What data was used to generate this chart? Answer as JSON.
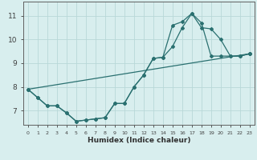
{
  "xlabel": "Humidex (Indice chaleur)",
  "xlim": [
    -0.5,
    23.5
  ],
  "ylim": [
    6.4,
    11.6
  ],
  "yticks": [
    7,
    8,
    9,
    10,
    11
  ],
  "xticks": [
    0,
    1,
    2,
    3,
    4,
    5,
    6,
    7,
    8,
    9,
    10,
    11,
    12,
    13,
    14,
    15,
    16,
    17,
    18,
    19,
    20,
    21,
    22,
    23
  ],
  "bg_color": "#d8eeee",
  "grid_color": "#b8d8d8",
  "line_color": "#2a7070",
  "lines": [
    {
      "x": [
        0,
        1,
        2,
        3,
        4,
        5,
        6,
        7,
        8,
        9,
        10,
        11,
        12,
        13,
        14,
        15,
        16,
        17,
        18,
        19,
        20,
        21,
        22,
        23
      ],
      "y": [
        7.9,
        7.55,
        7.2,
        7.2,
        6.9,
        6.55,
        6.6,
        6.65,
        6.7,
        7.3,
        7.3,
        8.0,
        8.5,
        9.2,
        9.25,
        9.7,
        10.5,
        11.1,
        10.5,
        10.45,
        10.0,
        9.3,
        9.3,
        9.4
      ]
    },
    {
      "x": [
        0,
        1,
        2,
        3,
        4,
        5,
        6,
        7,
        8,
        9,
        10,
        11,
        12,
        13,
        14,
        15,
        16,
        17,
        18,
        19,
        20,
        21,
        22,
        23
      ],
      "y": [
        7.9,
        7.55,
        7.2,
        7.2,
        6.9,
        6.55,
        6.6,
        6.65,
        6.7,
        7.3,
        7.3,
        8.0,
        8.5,
        9.2,
        9.25,
        10.6,
        10.75,
        11.1,
        10.7,
        9.3,
        9.3,
        9.3,
        9.3,
        9.4
      ]
    },
    {
      "x": [
        0,
        23
      ],
      "y": [
        7.9,
        9.4
      ]
    }
  ]
}
